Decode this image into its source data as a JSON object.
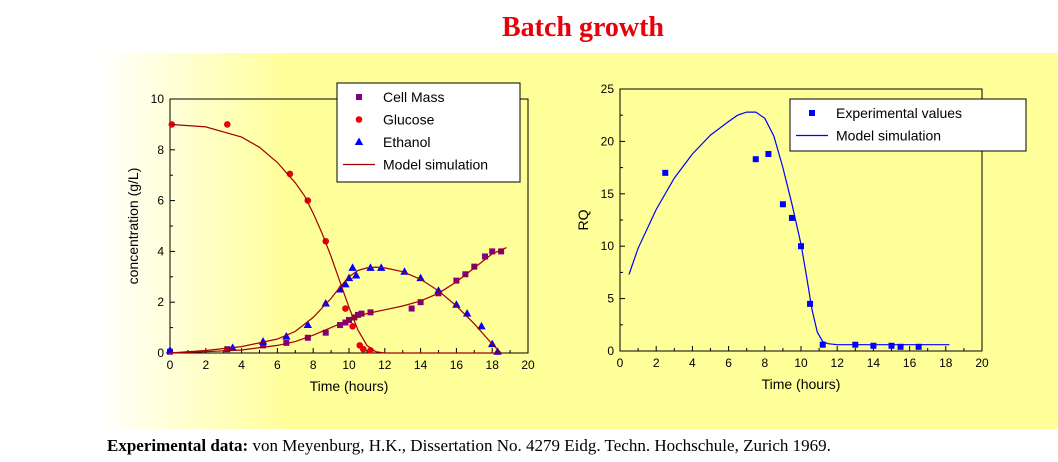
{
  "page": {
    "title": "Batch growth",
    "panel_bg_from": "#ffffff",
    "panel_bg_to": "#ffff99",
    "footer_label": "Experimental data:",
    "footer_text": "von Meyenburg, H.K., Dissertation No. 4279 Eidg. Techn. Hochschule, Zurich 1969."
  },
  "chart_data": [
    {
      "type": "scatter",
      "xlabel": "Time (hours)",
      "ylabel": "concentration (g/L)",
      "xlim": [
        0,
        20
      ],
      "ylim": [
        0,
        10
      ],
      "xticks": [
        0,
        2,
        4,
        6,
        8,
        10,
        12,
        14,
        16,
        18,
        20
      ],
      "yticks": [
        0,
        2,
        4,
        6,
        8,
        10
      ],
      "legend_position": "top-right",
      "legend": [
        "Cell Mass",
        "Glucose",
        "Ethanol",
        "Model simulation"
      ],
      "series": [
        {
          "name": "Cell Mass",
          "marker": "square",
          "color": "#800080",
          "x": [
            0,
            3.2,
            5.2,
            6.5,
            7.7,
            8.7,
            9.5,
            9.8,
            10.0,
            10.3,
            10.5,
            10.7,
            11.2,
            13.5,
            14.0,
            15.0,
            16.0,
            16.5,
            17.0,
            17.6,
            18.0,
            18.5
          ],
          "y": [
            0.05,
            0.15,
            0.3,
            0.4,
            0.6,
            0.8,
            1.1,
            1.2,
            1.3,
            1.4,
            1.5,
            1.55,
            1.6,
            1.75,
            2.0,
            2.35,
            2.85,
            3.1,
            3.4,
            3.8,
            4.0,
            4.0
          ]
        },
        {
          "name": "Glucose",
          "marker": "circle",
          "color": "#e8000b",
          "x": [
            0.1,
            3.2,
            6.7,
            7.7,
            8.7,
            9.8,
            10.2,
            10.6,
            10.8,
            11.2
          ],
          "y": [
            9.0,
            9.0,
            7.05,
            6.0,
            4.4,
            1.75,
            1.05,
            0.3,
            0.15,
            0.1
          ]
        },
        {
          "name": "Ethanol",
          "marker": "triangle",
          "color": "#0000ff",
          "x": [
            0,
            3.5,
            5.2,
            6.5,
            7.7,
            8.7,
            9.5,
            9.8,
            10.0,
            10.2,
            10.4,
            11.2,
            11.8,
            13.1,
            14.0,
            15.0,
            16.0,
            16.6,
            17.4,
            18.0,
            18.3
          ],
          "y": [
            0.1,
            0.2,
            0.45,
            0.65,
            1.1,
            1.95,
            2.5,
            2.7,
            2.95,
            3.35,
            3.05,
            3.35,
            3.35,
            3.2,
            2.95,
            2.45,
            1.9,
            1.55,
            1.05,
            0.35,
            0.05
          ]
        },
        {
          "name": "Model simulation",
          "marker": "line",
          "color": "#a00000",
          "curves": [
            {
              "x": [
                0,
                2,
                4,
                5,
                6,
                7,
                7.5,
                8,
                8.5,
                9,
                9.5,
                10,
                10.5,
                11,
                11.5,
                12,
                14,
                16,
                18.5
              ],
              "y": [
                9.0,
                8.9,
                8.5,
                8.1,
                7.5,
                6.7,
                6.2,
                5.5,
                4.7,
                3.8,
                2.8,
                1.8,
                0.9,
                0.3,
                0.05,
                0.0,
                0.0,
                0.0,
                0.0
              ]
            },
            {
              "x": [
                0,
                2,
                4,
                6,
                7,
                8,
                9,
                10,
                10.5,
                11,
                12,
                13,
                14,
                15,
                16,
                17,
                18,
                18.8
              ],
              "y": [
                0.0,
                0.05,
                0.12,
                0.3,
                0.45,
                0.7,
                1.0,
                1.3,
                1.45,
                1.55,
                1.7,
                1.85,
                2.05,
                2.35,
                2.8,
                3.35,
                3.9,
                4.15
              ]
            },
            {
              "x": [
                0,
                2,
                4,
                6,
                7,
                8,
                9,
                9.5,
                10,
                10.5,
                11,
                11.5,
                12,
                13,
                14,
                15,
                16,
                17,
                18,
                18.5
              ],
              "y": [
                0.0,
                0.1,
                0.25,
                0.55,
                0.85,
                1.4,
                2.15,
                2.6,
                3.0,
                3.25,
                3.35,
                3.38,
                3.35,
                3.2,
                2.9,
                2.45,
                1.85,
                1.15,
                0.35,
                0.0
              ]
            }
          ]
        }
      ]
    },
    {
      "type": "scatter",
      "xlabel": "Time (hours)",
      "ylabel": "RQ",
      "xlim": [
        0,
        20
      ],
      "ylim": [
        0,
        25
      ],
      "xticks": [
        0,
        2,
        4,
        6,
        8,
        10,
        12,
        14,
        16,
        18,
        20
      ],
      "yticks": [
        0,
        5,
        10,
        15,
        20,
        25
      ],
      "legend_position": "top-right",
      "legend": [
        "Experimental values",
        "Model simulation"
      ],
      "series": [
        {
          "name": "Experimental values",
          "marker": "square",
          "color": "#0000ff",
          "x": [
            2.5,
            7.5,
            8.2,
            9.0,
            9.5,
            10.0,
            10.5,
            11.2,
            13.0,
            14.0,
            15.0,
            15.5,
            16.5
          ],
          "y": [
            17.0,
            18.3,
            18.8,
            14.0,
            12.7,
            10.0,
            4.5,
            0.6,
            0.6,
            0.5,
            0.5,
            0.4,
            0.4
          ]
        },
        {
          "name": "Model simulation",
          "marker": "line",
          "color": "#0000ff",
          "curves": [
            {
              "x": [
                0.5,
                1,
                2,
                3,
                4,
                5,
                6,
                6.5,
                7,
                7.5,
                8,
                8.5,
                9,
                9.5,
                10,
                10.3,
                10.6,
                10.9,
                11.2,
                11.5,
                12,
                14,
                16,
                18.2
              ],
              "y": [
                7.3,
                9.8,
                13.5,
                16.5,
                18.8,
                20.6,
                21.9,
                22.5,
                22.8,
                22.8,
                22.2,
                20.5,
                17.5,
                14.0,
                10.2,
                7.2,
                4.0,
                1.8,
                0.9,
                0.7,
                0.6,
                0.6,
                0.6,
                0.6
              ]
            }
          ]
        }
      ]
    }
  ]
}
